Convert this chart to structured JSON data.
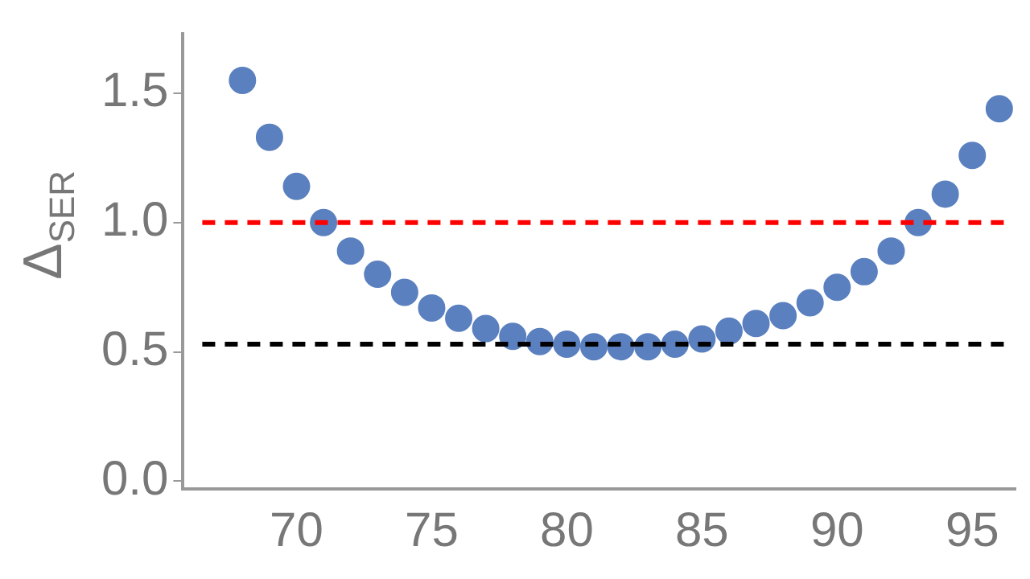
{
  "chart_data": {
    "type": "scatter",
    "ylabel": "Δ$_{SER}$",
    "x": [
      68,
      69,
      70,
      71,
      72,
      73,
      74,
      75,
      76,
      77,
      78,
      79,
      80,
      81,
      82,
      83,
      84,
      85,
      86,
      87,
      88,
      89,
      90,
      91,
      92,
      93,
      94,
      95,
      96
    ],
    "series": [
      {
        "color": "#5b80bf",
        "values": [
          1.55,
          1.33,
          1.14,
          1.0,
          0.89,
          0.8,
          0.73,
          0.67,
          0.63,
          0.59,
          0.56,
          0.54,
          0.53,
          0.52,
          0.52,
          0.52,
          0.53,
          0.55,
          0.58,
          0.61,
          0.64,
          0.69,
          0.75,
          0.81,
          0.89,
          1.0,
          1.11,
          1.26,
          1.44
        ]
      }
    ],
    "xlim": [
      65.8,
      96.6
    ],
    "xticks": [
      70,
      75,
      80,
      85,
      90,
      95
    ],
    "ylim": [
      -0.03,
      1.73
    ],
    "yticks": [
      {
        "value": 0,
        "label": "0.0"
      },
      {
        "value": 0.5,
        "label": "0.5"
      },
      {
        "value": 1,
        "label": "1.0"
      },
      {
        "value": 1.5,
        "label": "1.5"
      }
    ],
    "ref_lines": [
      {
        "axis": "y",
        "value": 1.0,
        "color": "#ff0000",
        "line_style": "dashed"
      },
      {
        "axis": "y",
        "value": 0.53,
        "color": "#000000",
        "line_style": "dashed"
      }
    ],
    "grid": false,
    "legend": false,
    "marker": "circle"
  }
}
